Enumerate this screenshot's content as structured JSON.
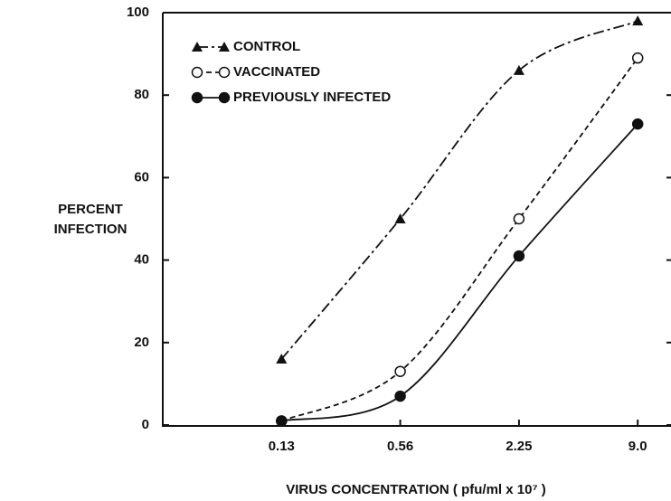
{
  "chart_data": {
    "type": "line",
    "ylabel": [
      "PERCENT",
      "INFECTION"
    ],
    "xlabel": "VIRUS CONCENTRATION ( pfu/ml x 10⁷ )",
    "categories": [
      "0.13",
      "0.56",
      "2.25",
      "9.0"
    ],
    "series": [
      {
        "name": "CONTROL",
        "color": "#111111",
        "marker": "triangle",
        "line_style": "dashdot",
        "values": [
          16,
          50,
          86,
          98
        ]
      },
      {
        "name": "VACCINATED",
        "color": "#111111",
        "marker": "open-circle",
        "line_style": "dashed",
        "values": [
          1,
          13,
          50,
          89
        ]
      },
      {
        "name": "PREVIOUSLY INFECTED",
        "color": "#111111",
        "marker": "filled-circle",
        "line_style": "solid",
        "values": [
          1,
          7,
          41,
          73
        ]
      }
    ],
    "ylim": [
      0,
      100
    ],
    "yticks": [
      0,
      20,
      40,
      60,
      80,
      100
    ],
    "legend": "upper left",
    "grid": false
  }
}
